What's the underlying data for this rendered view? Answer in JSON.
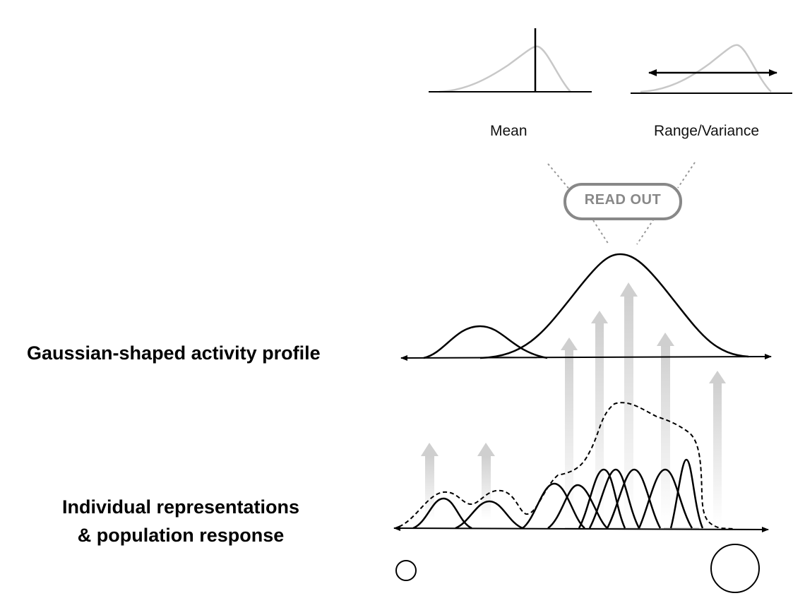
{
  "labels": {
    "mean": "Mean",
    "range_variance": "Range/Variance",
    "read_out": "READ OUT",
    "gaussian_profile": "Gaussian-shaped activity profile",
    "individual_line1": "Individual representations",
    "individual_line2": "& population response"
  },
  "colors": {
    "curve": "#000000",
    "light_curve": "#c8c8c8",
    "readout_border": "#888888",
    "arrow_gray": "#cfcfcf"
  }
}
